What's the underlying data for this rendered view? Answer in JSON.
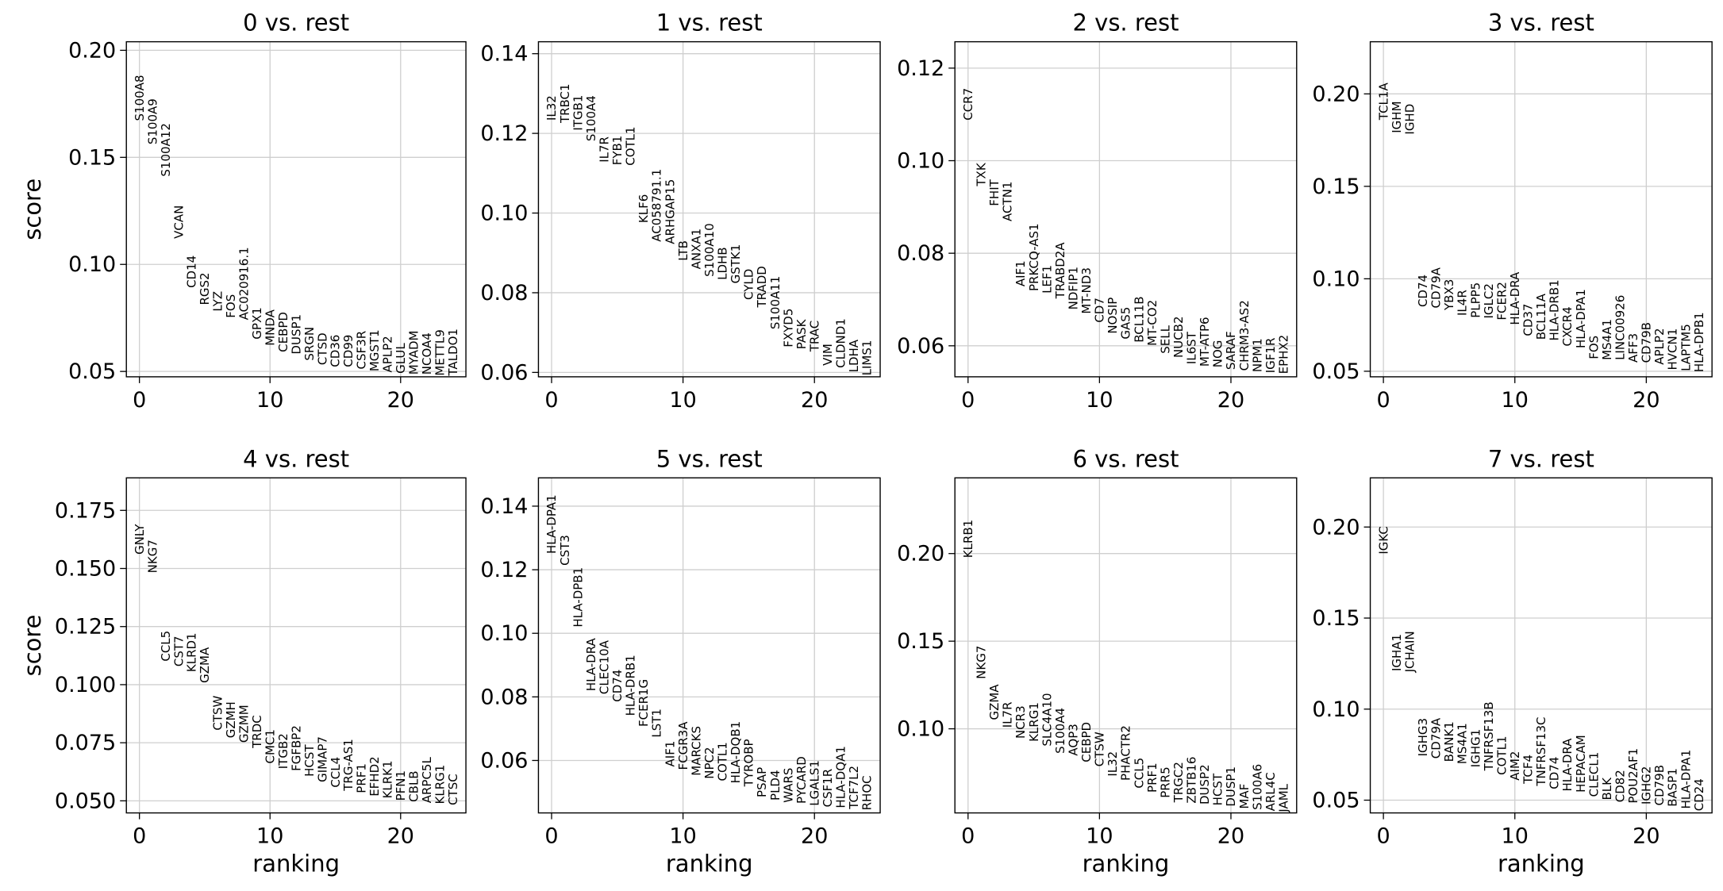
{
  "chart_data": [
    {
      "type": "ranked-labels",
      "title": "0 vs. rest",
      "ylabel": "score",
      "grid": true,
      "x": [
        0,
        1,
        2,
        3,
        4,
        5,
        6,
        7,
        8,
        9,
        10,
        11,
        12,
        13,
        14,
        15,
        16,
        17,
        18,
        19,
        20,
        21,
        22,
        23,
        24
      ],
      "categories": [
        "S100A8",
        "S100A9",
        "S100A12",
        "VCAN",
        "CD14",
        "RGS2",
        "LYZ",
        "FOS",
        "AC020916.1",
        "GPX1",
        "MNDA",
        "CEBPD",
        "DUSP1",
        "SRGN",
        "CTSD",
        "CD36",
        "CD99",
        "CSF3R",
        "MGST1",
        "APLP2",
        "GLUL",
        "MYADM",
        "NCOA4",
        "METTL9",
        "TALDO1"
      ],
      "values": [
        0.167,
        0.156,
        0.141,
        0.112,
        0.089,
        0.081,
        0.078,
        0.075,
        0.074,
        0.065,
        0.062,
        0.059,
        0.058,
        0.055,
        0.053,
        0.052,
        0.052,
        0.051,
        0.05,
        0.0495,
        0.049,
        0.0485,
        0.0485,
        0.048,
        0.048
      ],
      "xlim": [
        -1,
        25
      ],
      "ylim": [
        0.0475,
        0.204
      ],
      "xticks": [
        0,
        10,
        20
      ],
      "yticks": [
        0.05,
        {
          "value": 0.1,
          "label": "0.10"
        },
        0.15,
        {
          "value": 0.2,
          "label": "0.20"
        }
      ]
    },
    {
      "type": "ranked-labels",
      "title": "1 vs. rest",
      "grid": true,
      "x": [
        0,
        1,
        2,
        3,
        4,
        5,
        6,
        7,
        8,
        9,
        10,
        11,
        12,
        13,
        14,
        15,
        16,
        17,
        18,
        19,
        20,
        21,
        22,
        23,
        24
      ],
      "categories": [
        "IL32",
        "TRBC1",
        "ITGB1",
        "S100A4",
        "IL7R",
        "FYB1",
        "COTL1",
        "KLF6",
        "AC058791.1",
        "ARHGAP15",
        "LTB",
        "ANXA1",
        "S100A10",
        "LDHB",
        "GSTK1",
        "CYLD",
        "TRADD",
        "S100A11",
        "FXYD5",
        "PASK",
        "TRAC",
        "VIM",
        "CLDND1",
        "LDHA",
        "LIMS1"
      ],
      "values": [
        0.1232,
        0.1226,
        0.1207,
        0.118,
        0.1127,
        0.112,
        0.1119,
        0.0975,
        0.0928,
        0.0922,
        0.088,
        0.0859,
        0.084,
        0.0832,
        0.0823,
        0.0782,
        0.0763,
        0.0708,
        0.0663,
        0.0658,
        0.0652,
        0.0617,
        0.0611,
        0.06,
        0.0592
      ],
      "xlim": [
        -1,
        25
      ],
      "ylim": [
        0.0589,
        0.143
      ],
      "xticks": [
        0,
        10,
        20
      ],
      "yticks": [
        0.06,
        0.08,
        {
          "value": 0.1,
          "label": "0.10"
        },
        0.12,
        0.14
      ]
    },
    {
      "type": "ranked-labels",
      "title": "2 vs. rest",
      "grid": true,
      "x": [
        0,
        1,
        2,
        3,
        4,
        5,
        6,
        7,
        8,
        9,
        10,
        11,
        12,
        13,
        14,
        15,
        16,
        17,
        18,
        19,
        20,
        21,
        22,
        23,
        24
      ],
      "categories": [
        "CCR7",
        "TXK",
        "FHIT",
        "ACTN1",
        "AIF1",
        "PRKCQ-AS1",
        "LEF1",
        "TRABD2A",
        "NDFIP1",
        "MT-ND3",
        "CD7",
        "NOSIP",
        "GAS5",
        "BCL11B",
        "MT-CO2",
        "SELL",
        "NUCB2",
        "IL6ST",
        "MT-ATP6",
        "NOG",
        "SARAF",
        "CHRM3-AS2",
        "NPM1",
        "IGF1R",
        "EPHX2"
      ],
      "values": [
        0.1087,
        0.0945,
        0.0902,
        0.0869,
        0.0728,
        0.0718,
        0.0713,
        0.0702,
        0.0678,
        0.0669,
        0.065,
        0.0626,
        0.0614,
        0.0607,
        0.06,
        0.0583,
        0.0574,
        0.056,
        0.0555,
        0.0553,
        0.0548,
        0.0546,
        0.0543,
        0.0541,
        0.0539
      ],
      "xlim": [
        -1,
        25
      ],
      "ylim": [
        0.0533,
        0.1257
      ],
      "xticks": [
        0,
        10,
        20
      ],
      "yticks": [
        0.06,
        0.08,
        {
          "value": 0.1,
          "label": "0.10"
        },
        0.12
      ]
    },
    {
      "type": "ranked-labels",
      "title": "3 vs. rest",
      "grid": true,
      "x": [
        0,
        1,
        2,
        3,
        4,
        5,
        6,
        7,
        8,
        9,
        10,
        11,
        12,
        13,
        14,
        15,
        16,
        17,
        18,
        19,
        20,
        21,
        22,
        23,
        24
      ],
      "categories": [
        "TCL1A",
        "IGHM",
        "IGHD",
        "CD74",
        "CD79A",
        "YBX3",
        "IL4R",
        "PLPP5",
        "IGLC2",
        "FCER2",
        "HLA-DRA",
        "CD37",
        "BCL11A",
        "HLA-DRB1",
        "CXCR4",
        "HLA-DPA1",
        "FOS",
        "MS4A1",
        "LINC00926",
        "AFF3",
        "CD79B",
        "APLP2",
        "HVCN1",
        "LAPTM5",
        "HLA-DPB1"
      ],
      "values": [
        0.1859,
        0.1788,
        0.178,
        0.0847,
        0.0841,
        0.083,
        0.08,
        0.0788,
        0.0785,
        0.0776,
        0.075,
        0.069,
        0.067,
        0.0665,
        0.0635,
        0.0624,
        0.0565,
        0.056,
        0.056,
        0.0547,
        0.0545,
        0.0535,
        0.0506,
        0.05,
        0.0495
      ],
      "xlim": [
        -1,
        25
      ],
      "ylim": [
        0.047,
        0.2282
      ],
      "xticks": [
        0,
        10,
        20
      ],
      "yticks": [
        {
          "value": 0.05,
          "label": "0.05"
        },
        {
          "value": 0.1,
          "label": "0.10"
        },
        0.15,
        {
          "value": 0.2,
          "label": "0.20"
        }
      ]
    },
    {
      "type": "ranked-labels",
      "title": "4 vs. rest",
      "ylabel": "score",
      "xlabel": "ranking",
      "grid": true,
      "x": [
        0,
        1,
        2,
        3,
        4,
        5,
        6,
        7,
        8,
        9,
        10,
        11,
        12,
        13,
        14,
        15,
        16,
        17,
        18,
        19,
        20,
        21,
        22,
        23,
        24
      ],
      "categories": [
        "GNLY",
        "NKG7",
        "CCL5",
        "CST7",
        "KLRD1",
        "GZMA",
        "CTSW",
        "GZMH",
        "GZMM",
        "TRDC",
        "CMC1",
        "ITGB2",
        "FGFBP2",
        "HCST",
        "GIMAP7",
        "CCL4",
        "TRG-AS1",
        "PRF1",
        "EFHD2",
        "KLRK1",
        "PFN1",
        "CBLB",
        "ARPC5L",
        "KLRG1",
        "CTSC"
      ],
      "values": [
        0.156,
        0.148,
        0.11,
        0.1078,
        0.1054,
        0.1007,
        0.0803,
        0.077,
        0.075,
        0.0727,
        0.066,
        0.0637,
        0.0628,
        0.0604,
        0.058,
        0.0557,
        0.0543,
        0.0533,
        0.0519,
        0.051,
        0.05,
        0.0495,
        0.049,
        0.0486,
        0.0481
      ],
      "xlim": [
        -1,
        25
      ],
      "ylim": [
        0.0448,
        0.189
      ],
      "xticks": [
        0,
        10,
        20
      ],
      "yticks": [
        {
          "value": 0.05,
          "label": "0.050"
        },
        0.075,
        {
          "value": 0.1,
          "label": "0.100"
        },
        0.125,
        {
          "value": 0.15,
          "label": "0.150"
        },
        0.175
      ]
    },
    {
      "type": "ranked-labels",
      "title": "5 vs. rest",
      "xlabel": "ranking",
      "grid": true,
      "x": [
        0,
        1,
        2,
        3,
        4,
        5,
        6,
        7,
        8,
        9,
        10,
        11,
        12,
        13,
        14,
        15,
        16,
        17,
        18,
        19,
        20,
        21,
        22,
        23,
        24
      ],
      "categories": [
        "HLA-DPA1",
        "CST3",
        "HLA-DPB1",
        "HLA-DRA",
        "CLEC10A",
        "CD74",
        "HLA-DRB1",
        "FCER1G",
        "LST1",
        "AIF1",
        "FCGR3A",
        "MARCKS",
        "NPC2",
        "COTL1",
        "HLA-DQB1",
        "TYROBP",
        "PSAP",
        "PLD4",
        "WARS",
        "PYCARD",
        "LGALS1",
        "CSF1R",
        "HLA-DQA1",
        "TCF7L2",
        "RHOC"
      ],
      "values": [
        0.125,
        0.1213,
        0.1019,
        0.0818,
        0.0808,
        0.0784,
        0.074,
        0.0706,
        0.0672,
        0.058,
        0.057,
        0.0552,
        0.0542,
        0.0535,
        0.0528,
        0.0518,
        0.0484,
        0.0474,
        0.0467,
        0.0464,
        0.0457,
        0.0453,
        0.045,
        0.0447,
        0.0443
      ],
      "xlim": [
        -1,
        25
      ],
      "ylim": [
        0.0435,
        0.1489
      ],
      "xticks": [
        0,
        10,
        20
      ],
      "yticks": [
        0.06,
        0.08,
        {
          "value": 0.1,
          "label": "0.10"
        },
        0.12,
        0.14
      ]
    },
    {
      "type": "ranked-labels",
      "title": "6 vs. rest",
      "xlabel": "ranking",
      "grid": true,
      "x": [
        0,
        1,
        2,
        3,
        4,
        5,
        6,
        7,
        8,
        9,
        10,
        11,
        12,
        13,
        14,
        15,
        16,
        17,
        18,
        19,
        20,
        21,
        22,
        23,
        24
      ],
      "categories": [
        "KLRB1",
        "NKG7",
        "GZMA",
        "IL7R",
        "NCR3",
        "KLRG1",
        "SLC4A10",
        "S100A4",
        "AQP3",
        "CEBPD",
        "CTSW",
        "IL32",
        "PHACTR2",
        "CCL5",
        "PRF1",
        "PRR5",
        "TRGC2",
        "ZBTB16",
        "DUSP2",
        "HCST",
        "DUSP1",
        "MAF",
        "S100A6",
        "ARL4C",
        "JAML"
      ],
      "values": [
        0.1975,
        0.1284,
        0.105,
        0.1006,
        0.0944,
        0.0926,
        0.09,
        0.0858,
        0.0846,
        0.0809,
        0.0784,
        0.0728,
        0.0704,
        0.066,
        0.0636,
        0.0605,
        0.058,
        0.0574,
        0.0568,
        0.0562,
        0.0556,
        0.0543,
        0.0537,
        0.053,
        0.0524
      ],
      "xlim": [
        -1,
        25
      ],
      "ylim": [
        0.052,
        0.2432
      ],
      "xticks": [
        0,
        10,
        20
      ],
      "yticks": [
        {
          "value": 0.1,
          "label": "0.10"
        },
        0.15,
        {
          "value": 0.2,
          "label": "0.20"
        }
      ]
    },
    {
      "type": "ranked-labels",
      "title": "7 vs. rest",
      "xlabel": "ranking",
      "grid": true,
      "x": [
        0,
        1,
        2,
        3,
        4,
        5,
        6,
        7,
        8,
        9,
        10,
        11,
        12,
        13,
        14,
        15,
        16,
        17,
        18,
        19,
        20,
        21,
        22,
        23,
        24
      ],
      "categories": [
        "IGKC",
        "IGHA1",
        "JCHAIN",
        "IGHG3",
        "CD79A",
        "BANK1",
        "MS4A1",
        "IGHG1",
        "TNFRSF13B",
        "COTL1",
        "AIM2",
        "TCF4",
        "TNFRSF13C",
        "CD74",
        "HLA-DRA",
        "HEPACAM",
        "CLECL1",
        "BLK",
        "CD82",
        "POU2AF1",
        "IGHG2",
        "CD79B",
        "BASP1",
        "HLA-DPA1",
        "CD24"
      ],
      "values": [
        0.185,
        0.1208,
        0.1202,
        0.074,
        0.0728,
        0.071,
        0.0698,
        0.068,
        0.0662,
        0.0638,
        0.0608,
        0.059,
        0.0578,
        0.056,
        0.0548,
        0.0542,
        0.0518,
        0.05,
        0.0488,
        0.0482,
        0.0476,
        0.047,
        0.0464,
        0.0452,
        0.044
      ],
      "xlim": [
        -1,
        25
      ],
      "ylim": [
        0.043,
        0.227
      ],
      "xticks": [
        0,
        10,
        20
      ],
      "yticks": [
        0.05,
        {
          "value": 0.1,
          "label": "0.10"
        },
        0.15,
        {
          "value": 0.2,
          "label": "0.20"
        }
      ]
    }
  ]
}
